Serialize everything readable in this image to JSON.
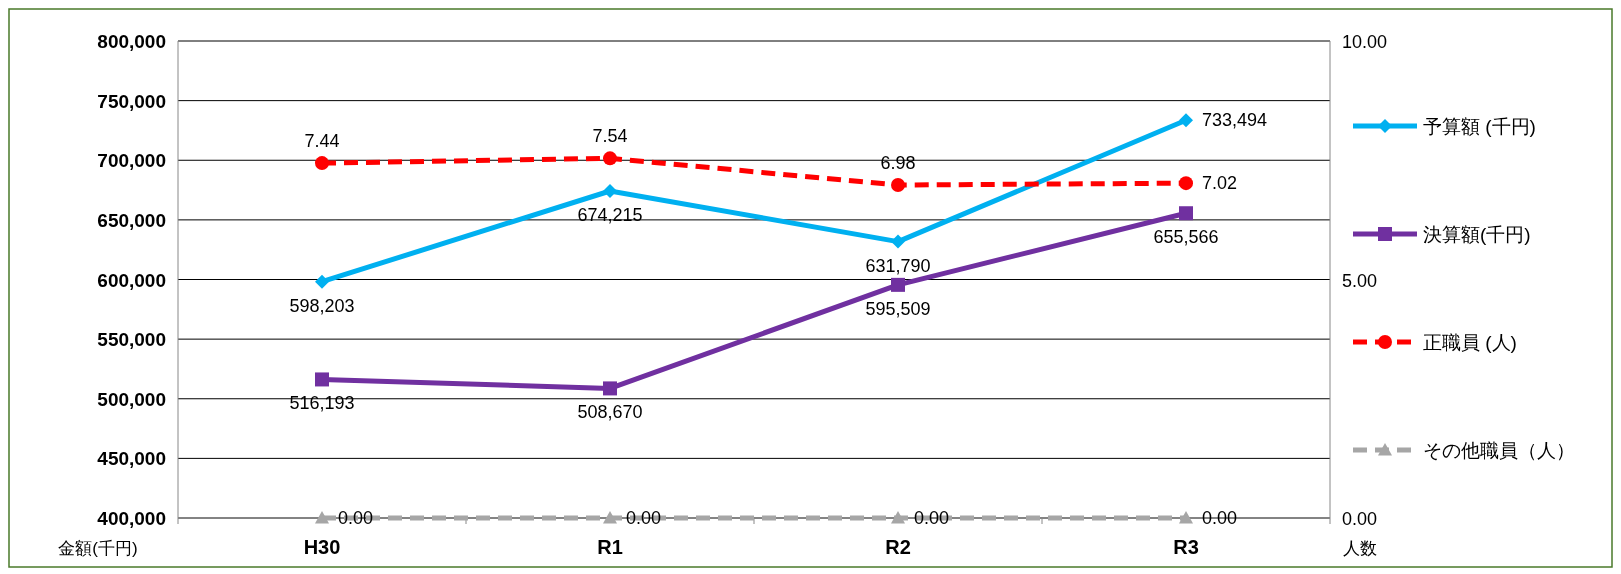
{
  "chart_data": {
    "type": "line",
    "ylabel": "金額(千円)",
    "y2label": "人数",
    "categories": [
      "H30",
      "R1",
      "R2",
      "R3"
    ],
    "ylim": [
      400000,
      800000
    ],
    "yticks": [
      {
        "value": 400000,
        "label": "400,000"
      },
      {
        "value": 450000,
        "label": "450,000"
      },
      {
        "value": 500000,
        "label": "500,000"
      },
      {
        "value": 550000,
        "label": "550,000"
      },
      {
        "value": 600000,
        "label": "600,000"
      },
      {
        "value": 650000,
        "label": "650,000"
      },
      {
        "value": 700000,
        "label": "700,000"
      },
      {
        "value": 750000,
        "label": "750,000"
      },
      {
        "value": 800000,
        "label": "800,000"
      }
    ],
    "y2lim": [
      0,
      10
    ],
    "y2ticks": [
      {
        "value": 0,
        "label": "0.00"
      },
      {
        "value": 5,
        "label": "5.00"
      },
      {
        "value": 10,
        "label": "10.00"
      }
    ],
    "grid": "y",
    "legend": "right",
    "series": [
      {
        "name": "予算額 (千円)",
        "color": "#00b0f0",
        "marker": "diamond",
        "line_style": "solid",
        "values": [
          598203,
          674215,
          631790,
          733494
        ],
        "value_labels": [
          "598,203",
          "674,215",
          "631,790",
          "733,494"
        ]
      },
      {
        "name": "決算額(千円)",
        "color": "#7030a0",
        "marker": "square",
        "line_style": "solid",
        "values": [
          516193,
          508670,
          595509,
          655566
        ],
        "value_labels": [
          "516,193",
          "508,670",
          "595,509",
          "655,566"
        ]
      },
      {
        "name": "正職員 (人)",
        "color": "#ff0000",
        "marker": "circle",
        "line_style": "dashed",
        "axis": "y2",
        "values": [
          7.44,
          7.54,
          6.98,
          7.02
        ],
        "value_labels": [
          "7.44",
          "7.54",
          "6.98",
          "7.02"
        ]
      },
      {
        "name": "その他職員（人）",
        "color": "#a6a6a6",
        "marker": "triangle",
        "line_style": "dashed",
        "axis": "y2",
        "values": [
          0,
          0,
          0,
          0
        ],
        "value_labels": [
          "0.00",
          "0.00",
          "0.00",
          "0.00"
        ]
      }
    ]
  }
}
